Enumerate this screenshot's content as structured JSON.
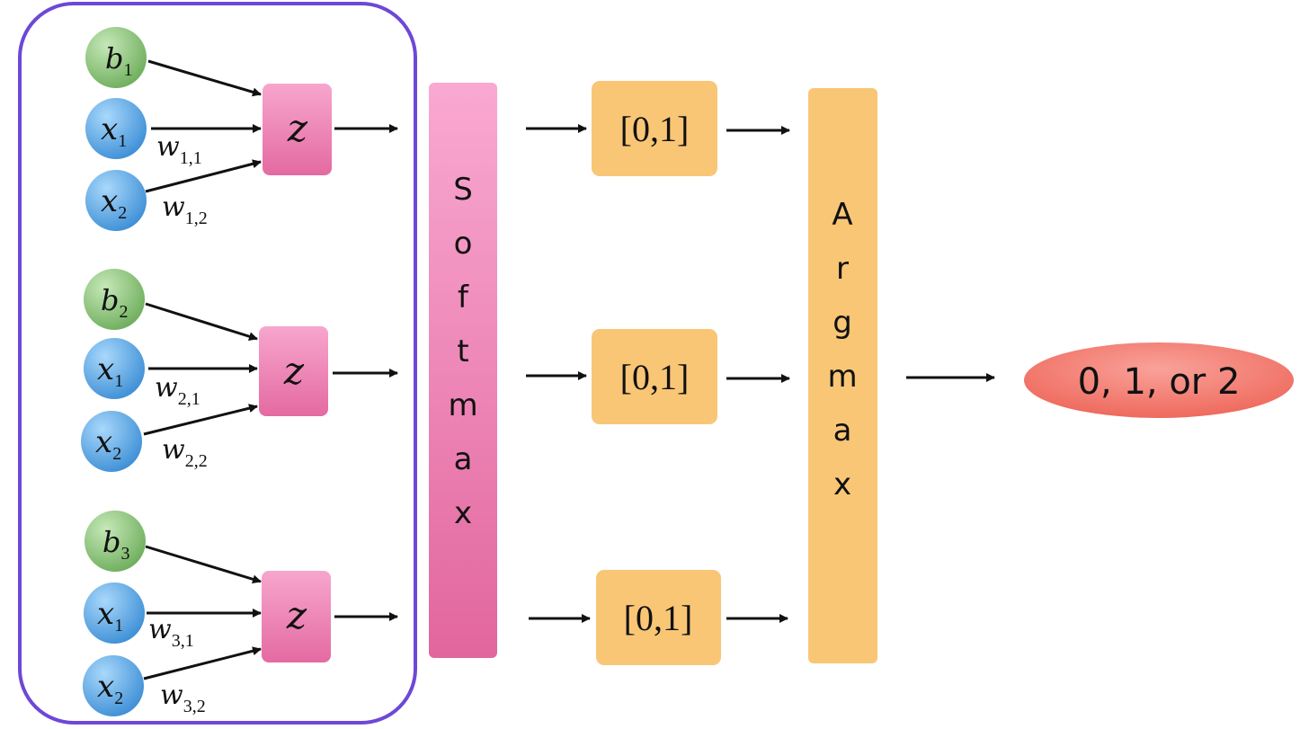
{
  "title": "Softmax / Argmax multi-class classifier diagram",
  "groups": [
    {
      "bias": {
        "base": "b",
        "sub": "1"
      },
      "inputs": [
        {
          "base": "x",
          "sub": "1"
        },
        {
          "base": "x",
          "sub": "2"
        }
      ],
      "weights": [
        {
          "base": "w",
          "sub": "1,1"
        },
        {
          "base": "w",
          "sub": "1,2"
        }
      ],
      "z_label": "z",
      "prob_label": "[0,1]"
    },
    {
      "bias": {
        "base": "b",
        "sub": "2"
      },
      "inputs": [
        {
          "base": "x",
          "sub": "1"
        },
        {
          "base": "x",
          "sub": "2"
        }
      ],
      "weights": [
        {
          "base": "w",
          "sub": "2,1"
        },
        {
          "base": "w",
          "sub": "2,2"
        }
      ],
      "z_label": "z",
      "prob_label": "[0,1]"
    },
    {
      "bias": {
        "base": "b",
        "sub": "3"
      },
      "inputs": [
        {
          "base": "x",
          "sub": "1"
        },
        {
          "base": "x",
          "sub": "2"
        }
      ],
      "weights": [
        {
          "base": "w",
          "sub": "3,1"
        },
        {
          "base": "w",
          "sub": "3,2"
        }
      ],
      "z_label": "z",
      "prob_label": "[0,1]"
    }
  ],
  "softmax_label": "Softmax",
  "argmax_label": "Argmax",
  "output_label": "0, 1, or 2",
  "colors": {
    "bias_node": "#8fca7c",
    "input_node": "#5aaae6",
    "z_box": "#ec7fae",
    "softmax_bar": "#ec86b5",
    "prob_box": "#f9c676",
    "argmax_bar": "#f9c676",
    "output_ellipse": "#f2776c",
    "frame": "#6d48d6"
  }
}
